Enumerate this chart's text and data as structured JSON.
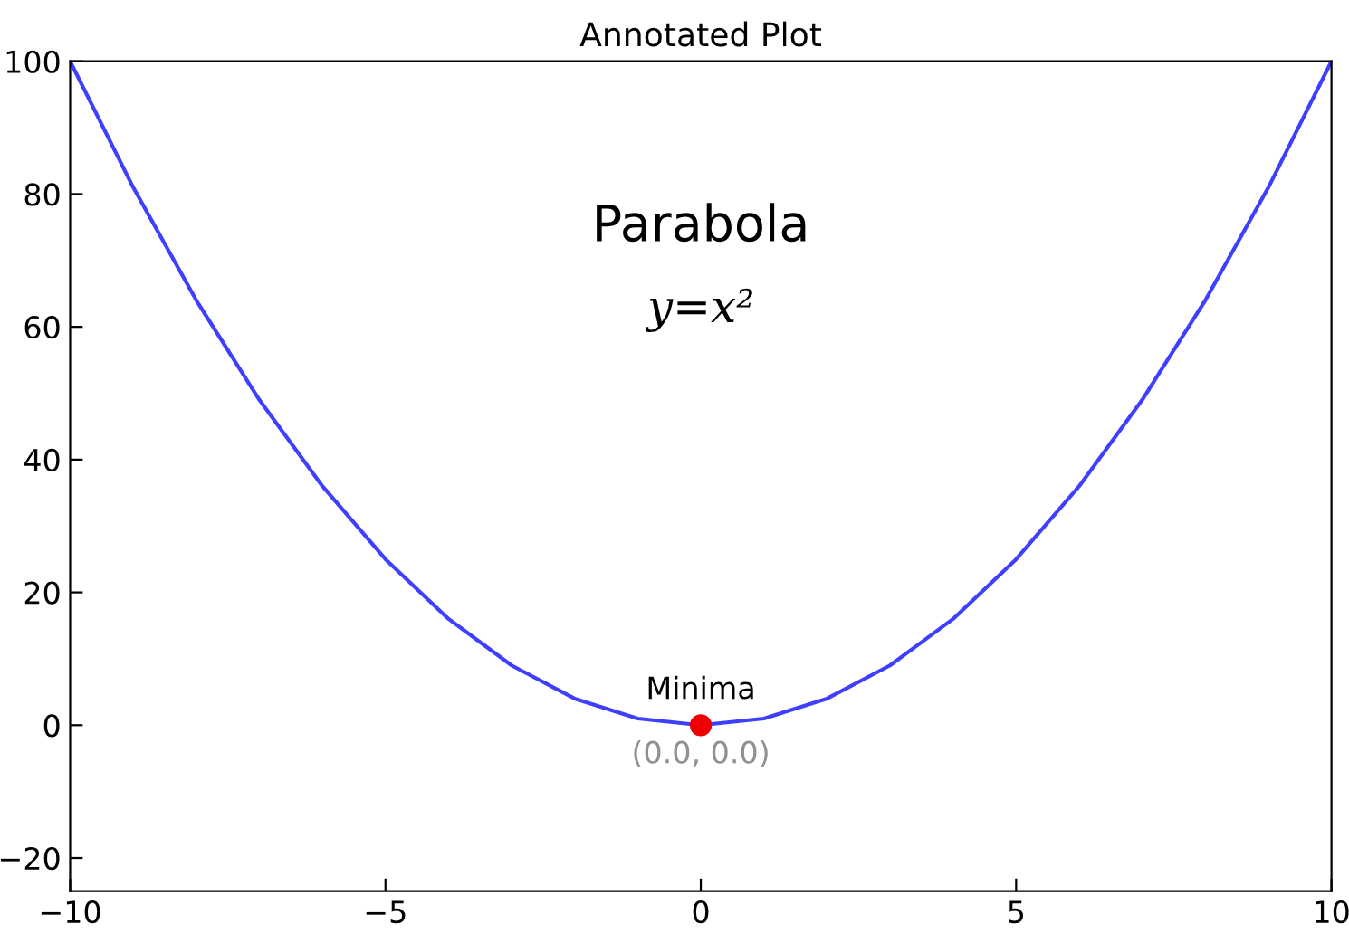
{
  "chart_data": {
    "type": "line",
    "title": "Annotated Plot",
    "series": [
      {
        "color": "#3f3fff",
        "x": [
          -10,
          -9,
          -8,
          -7,
          -6,
          -5,
          -4,
          -3,
          -2,
          -1,
          0,
          1,
          2,
          3,
          4,
          5,
          6,
          7,
          8,
          9,
          10
        ],
        "values": [
          100,
          81,
          64,
          49,
          36,
          25,
          16,
          9,
          4,
          1,
          0,
          1,
          4,
          9,
          16,
          25,
          36,
          49,
          64,
          81,
          100
        ]
      },
      {
        "type": "scatter",
        "color": "#ee0000",
        "marker": "circle",
        "x": [
          0
        ],
        "values": [
          0
        ]
      }
    ],
    "annotations": [
      "Parabola",
      "y=x²",
      {
        "text": "Minima",
        "x": 0,
        "y": 0
      },
      {
        "text": "(0.0, 0.0)",
        "x": 0,
        "y": 0
      }
    ],
    "xlim": [
      -10,
      10
    ],
    "ylim": [
      -25,
      100
    ],
    "xticks": [
      -10,
      -5,
      0,
      5,
      10
    ],
    "yticks": [
      -20,
      0,
      20,
      40,
      60,
      80,
      100
    ],
    "grid": false,
    "legend": false
  }
}
